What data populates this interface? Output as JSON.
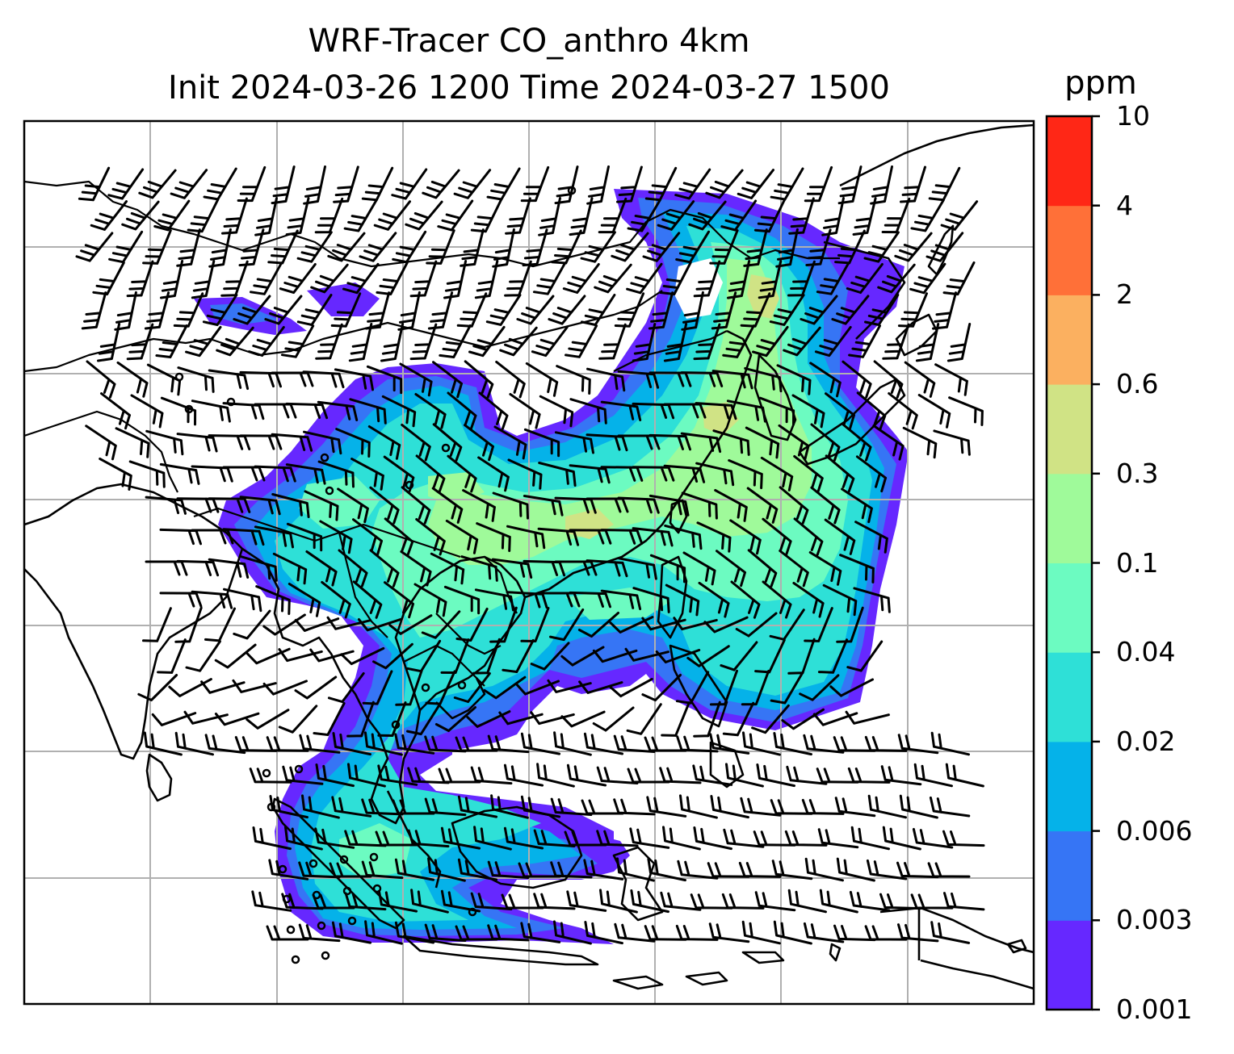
{
  "title": {
    "line1": "WRF-Tracer CO_anthro 4km",
    "line2": "Init 2024-03-26 1200 Time 2024-03-27 1500"
  },
  "colorbar": {
    "units": "ppm",
    "ticks": [
      "0.001",
      "0.003",
      "0.006",
      "0.02",
      "0.04",
      "0.1",
      "0.3",
      "0.6",
      "2",
      "4",
      "10"
    ],
    "colors": [
      "#6628ff",
      "#3675f5",
      "#05b2e9",
      "#2ee0d7",
      "#6cfbc1",
      "#9ffa9a",
      "#d0e385",
      "#fbb060",
      "#ff7038",
      "#ff2716"
    ]
  },
  "map": {
    "field": "CO_anthro",
    "overlays": [
      "coastlines",
      "country-borders",
      "gridlines",
      "wind-barbs"
    ]
  }
}
